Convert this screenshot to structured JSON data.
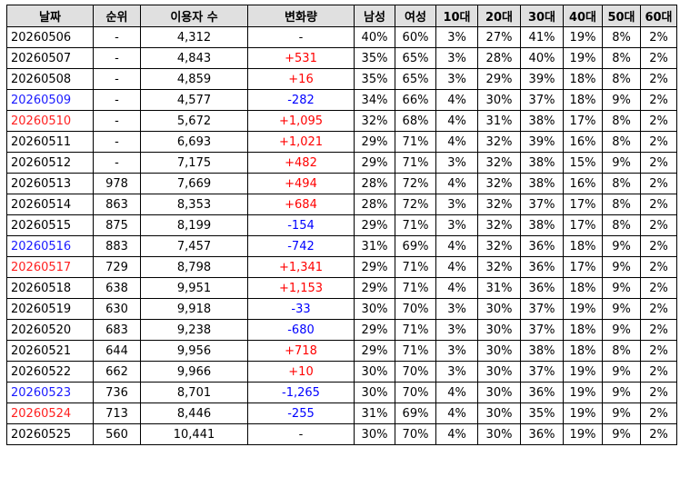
{
  "columns": [
    "날짜",
    "순위",
    "이용자 수",
    "변화량",
    "남성",
    "여성",
    "10대",
    "20대",
    "30대",
    "40대",
    "50대",
    "60대"
  ],
  "colors": {
    "header_bg": "#e0e0e0",
    "positive": "#ff0000",
    "negative": "#0000ff",
    "saturday": "#1a1aff",
    "sunday": "#ff2020"
  },
  "rows": [
    {
      "date": "20260506",
      "day": "weekday",
      "rank": "-",
      "users": "4,312",
      "change": "-",
      "dir": "none",
      "male": "40%",
      "female": "60%",
      "a10": "3%",
      "a20": "27%",
      "a30": "41%",
      "a40": "19%",
      "a50": "8%",
      "a60": "2%"
    },
    {
      "date": "20260507",
      "day": "weekday",
      "rank": "-",
      "users": "4,843",
      "change": "+531",
      "dir": "plus",
      "male": "35%",
      "female": "65%",
      "a10": "3%",
      "a20": "28%",
      "a30": "40%",
      "a40": "19%",
      "a50": "8%",
      "a60": "2%"
    },
    {
      "date": "20260508",
      "day": "weekday",
      "rank": "-",
      "users": "4,859",
      "change": "+16",
      "dir": "plus",
      "male": "35%",
      "female": "65%",
      "a10": "3%",
      "a20": "29%",
      "a30": "39%",
      "a40": "18%",
      "a50": "8%",
      "a60": "2%"
    },
    {
      "date": "20260509",
      "day": "sat",
      "rank": "-",
      "users": "4,577",
      "change": "-282",
      "dir": "minus",
      "male": "34%",
      "female": "66%",
      "a10": "4%",
      "a20": "30%",
      "a30": "37%",
      "a40": "18%",
      "a50": "9%",
      "a60": "2%"
    },
    {
      "date": "20260510",
      "day": "sun",
      "rank": "-",
      "users": "5,672",
      "change": "+1,095",
      "dir": "plus",
      "male": "32%",
      "female": "68%",
      "a10": "4%",
      "a20": "31%",
      "a30": "38%",
      "a40": "17%",
      "a50": "8%",
      "a60": "2%"
    },
    {
      "date": "20260511",
      "day": "weekday",
      "rank": "-",
      "users": "6,693",
      "change": "+1,021",
      "dir": "plus",
      "male": "29%",
      "female": "71%",
      "a10": "4%",
      "a20": "32%",
      "a30": "39%",
      "a40": "16%",
      "a50": "8%",
      "a60": "2%"
    },
    {
      "date": "20260512",
      "day": "weekday",
      "rank": "-",
      "users": "7,175",
      "change": "+482",
      "dir": "plus",
      "male": "29%",
      "female": "71%",
      "a10": "3%",
      "a20": "32%",
      "a30": "38%",
      "a40": "15%",
      "a50": "9%",
      "a60": "2%"
    },
    {
      "date": "20260513",
      "day": "weekday",
      "rank": "978",
      "users": "7,669",
      "change": "+494",
      "dir": "plus",
      "male": "28%",
      "female": "72%",
      "a10": "4%",
      "a20": "32%",
      "a30": "38%",
      "a40": "16%",
      "a50": "8%",
      "a60": "2%"
    },
    {
      "date": "20260514",
      "day": "weekday",
      "rank": "863",
      "users": "8,353",
      "change": "+684",
      "dir": "plus",
      "male": "28%",
      "female": "72%",
      "a10": "3%",
      "a20": "32%",
      "a30": "37%",
      "a40": "17%",
      "a50": "8%",
      "a60": "2%"
    },
    {
      "date": "20260515",
      "day": "weekday",
      "rank": "875",
      "users": "8,199",
      "change": "-154",
      "dir": "minus",
      "male": "29%",
      "female": "71%",
      "a10": "3%",
      "a20": "32%",
      "a30": "38%",
      "a40": "17%",
      "a50": "8%",
      "a60": "2%"
    },
    {
      "date": "20260516",
      "day": "sat",
      "rank": "883",
      "users": "7,457",
      "change": "-742",
      "dir": "minus",
      "male": "31%",
      "female": "69%",
      "a10": "4%",
      "a20": "32%",
      "a30": "36%",
      "a40": "18%",
      "a50": "9%",
      "a60": "2%"
    },
    {
      "date": "20260517",
      "day": "sun",
      "rank": "729",
      "users": "8,798",
      "change": "+1,341",
      "dir": "plus",
      "male": "29%",
      "female": "71%",
      "a10": "4%",
      "a20": "32%",
      "a30": "36%",
      "a40": "17%",
      "a50": "9%",
      "a60": "2%"
    },
    {
      "date": "20260518",
      "day": "weekday",
      "rank": "638",
      "users": "9,951",
      "change": "+1,153",
      "dir": "plus",
      "male": "29%",
      "female": "71%",
      "a10": "4%",
      "a20": "31%",
      "a30": "36%",
      "a40": "18%",
      "a50": "9%",
      "a60": "2%"
    },
    {
      "date": "20260519",
      "day": "weekday",
      "rank": "630",
      "users": "9,918",
      "change": "-33",
      "dir": "minus",
      "male": "30%",
      "female": "70%",
      "a10": "3%",
      "a20": "30%",
      "a30": "37%",
      "a40": "19%",
      "a50": "9%",
      "a60": "2%"
    },
    {
      "date": "20260520",
      "day": "weekday",
      "rank": "683",
      "users": "9,238",
      "change": "-680",
      "dir": "minus",
      "male": "29%",
      "female": "71%",
      "a10": "3%",
      "a20": "30%",
      "a30": "37%",
      "a40": "18%",
      "a50": "9%",
      "a60": "2%"
    },
    {
      "date": "20260521",
      "day": "weekday",
      "rank": "644",
      "users": "9,956",
      "change": "+718",
      "dir": "plus",
      "male": "29%",
      "female": "71%",
      "a10": "3%",
      "a20": "30%",
      "a30": "38%",
      "a40": "18%",
      "a50": "8%",
      "a60": "2%"
    },
    {
      "date": "20260522",
      "day": "weekday",
      "rank": "662",
      "users": "9,966",
      "change": "+10",
      "dir": "plus",
      "male": "30%",
      "female": "70%",
      "a10": "3%",
      "a20": "30%",
      "a30": "37%",
      "a40": "19%",
      "a50": "9%",
      "a60": "2%"
    },
    {
      "date": "20260523",
      "day": "sat",
      "rank": "736",
      "users": "8,701",
      "change": "-1,265",
      "dir": "minus",
      "male": "30%",
      "female": "70%",
      "a10": "4%",
      "a20": "30%",
      "a30": "36%",
      "a40": "19%",
      "a50": "9%",
      "a60": "2%"
    },
    {
      "date": "20260524",
      "day": "sun",
      "rank": "713",
      "users": "8,446",
      "change": "-255",
      "dir": "minus",
      "male": "31%",
      "female": "69%",
      "a10": "4%",
      "a20": "30%",
      "a30": "35%",
      "a40": "19%",
      "a50": "9%",
      "a60": "2%"
    },
    {
      "date": "20260525",
      "day": "weekday",
      "rank": "560",
      "users": "10,441",
      "change": "-",
      "dir": "none",
      "male": "30%",
      "female": "70%",
      "a10": "4%",
      "a20": "30%",
      "a30": "36%",
      "a40": "19%",
      "a50": "9%",
      "a60": "2%"
    }
  ]
}
